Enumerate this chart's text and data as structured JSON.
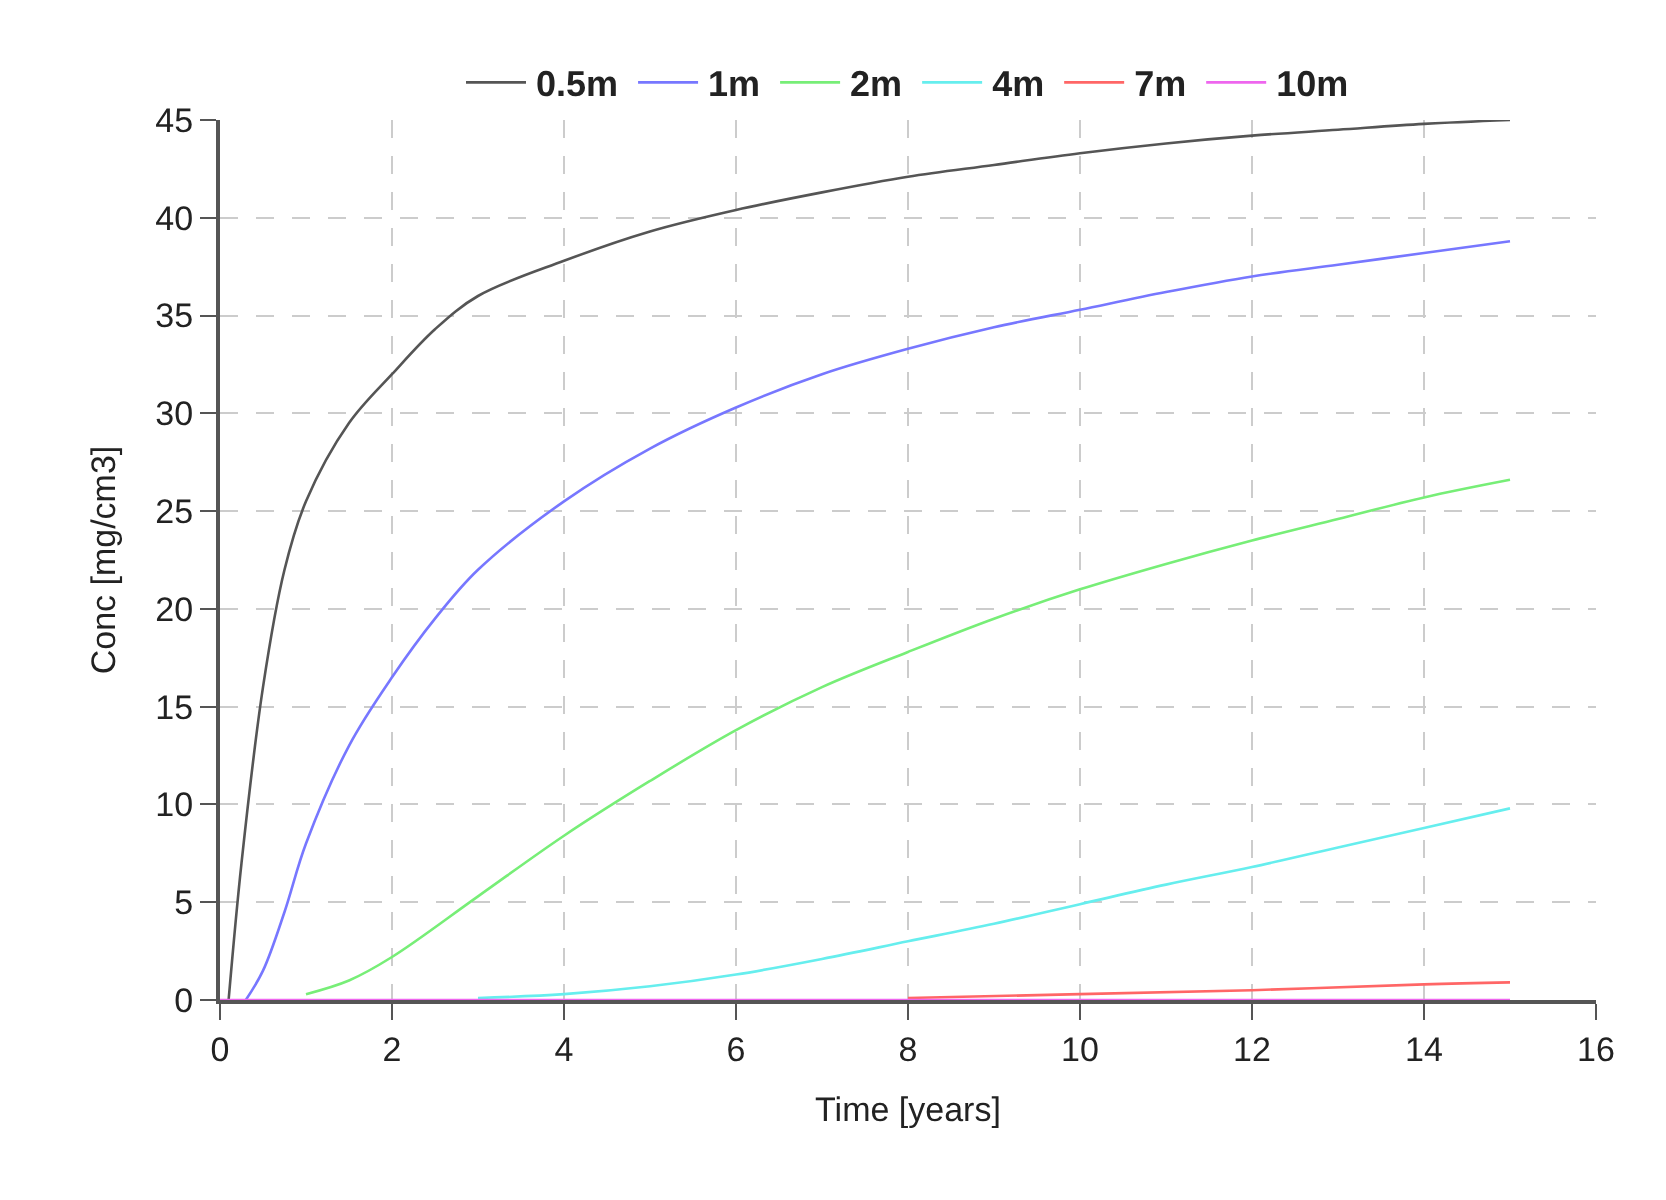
{
  "chart_data": {
    "type": "line",
    "xlabel": "Time [years]",
    "ylabel": "Conc [mg/cm3]",
    "xlim": [
      0,
      16
    ],
    "xticks": [
      0,
      2,
      4,
      6,
      8,
      10,
      12,
      14,
      16
    ],
    "ylim": [
      0,
      45
    ],
    "yticks": [
      0,
      5,
      10,
      15,
      20,
      25,
      30,
      35,
      40,
      45
    ],
    "grid": true,
    "legend": "top",
    "marker": "none",
    "line_style": "solid",
    "series": [
      {
        "name": "0.5m",
        "color": "#555555",
        "x": [
          0.1,
          0.25,
          0.5,
          0.75,
          1,
          1.5,
          2,
          2.5,
          3,
          4,
          5,
          6,
          7,
          8,
          9,
          10,
          11,
          12,
          13,
          14,
          15
        ],
        "values": [
          0,
          7,
          16,
          22,
          25.5,
          29.5,
          32,
          34.3,
          36,
          37.8,
          39.3,
          40.4,
          41.3,
          42.1,
          42.7,
          43.3,
          43.8,
          44.2,
          44.5,
          44.8,
          45
        ]
      },
      {
        "name": "1m",
        "color": "#7777ff",
        "x": [
          0.3,
          0.5,
          0.75,
          1,
          1.5,
          2,
          2.5,
          3,
          4,
          5,
          6,
          7,
          8,
          9,
          10,
          11,
          12,
          13,
          14,
          15
        ],
        "values": [
          0,
          1.5,
          4.5,
          8,
          13,
          16.5,
          19.5,
          22,
          25.5,
          28.2,
          30.3,
          32,
          33.3,
          34.4,
          35.3,
          36.2,
          37,
          37.6,
          38.2,
          38.8
        ]
      },
      {
        "name": "2m",
        "color": "#77ee77",
        "x": [
          1,
          1.5,
          2,
          3,
          4,
          5,
          6,
          7,
          8,
          9,
          10,
          11,
          12,
          13,
          14,
          15
        ],
        "values": [
          0.3,
          1,
          2.2,
          5.3,
          8.4,
          11.2,
          13.8,
          16,
          17.8,
          19.5,
          21,
          22.3,
          23.5,
          24.6,
          25.7,
          26.6
        ]
      },
      {
        "name": "4m",
        "color": "#66eeee",
        "x": [
          3,
          4,
          5,
          6,
          7,
          8,
          9,
          10,
          11,
          12,
          13,
          14,
          15
        ],
        "values": [
          0.1,
          0.3,
          0.7,
          1.3,
          2.1,
          3,
          3.9,
          4.9,
          5.9,
          6.8,
          7.8,
          8.8,
          9.8
        ]
      },
      {
        "name": "7m",
        "color": "#ff6666",
        "x": [
          8,
          10,
          12,
          14,
          15
        ],
        "values": [
          0.1,
          0.3,
          0.5,
          0.8,
          0.9
        ]
      },
      {
        "name": "10m",
        "color": "#ee66ee",
        "x": [
          0,
          15
        ],
        "values": [
          0,
          0
        ]
      }
    ]
  }
}
